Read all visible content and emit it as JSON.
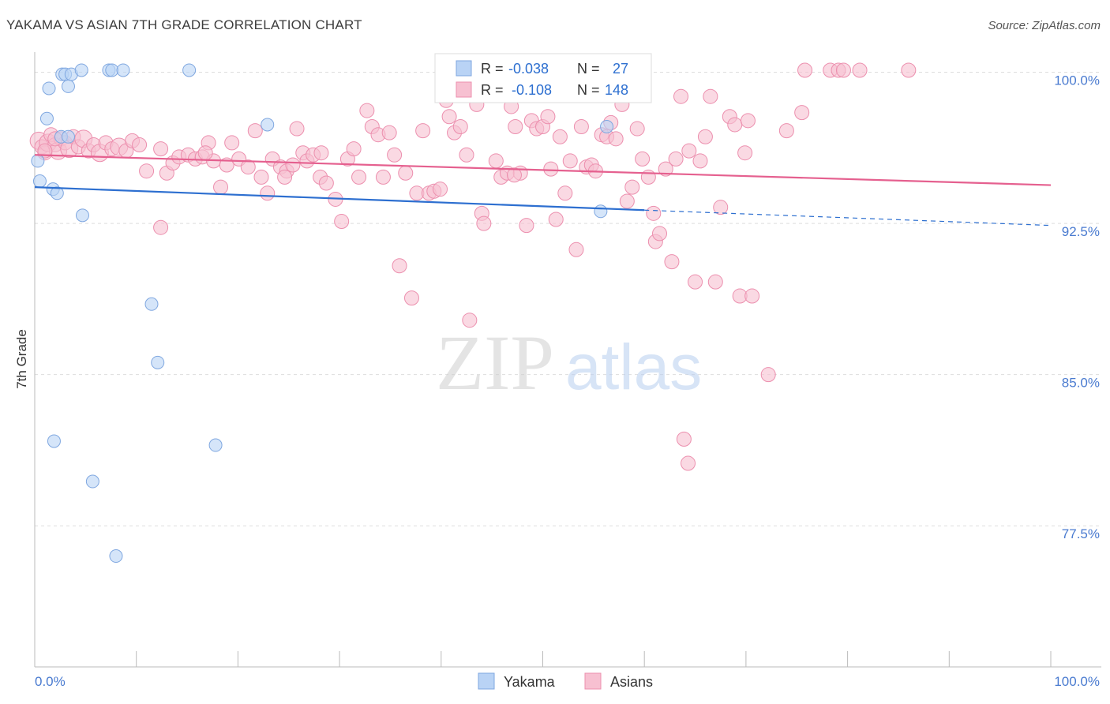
{
  "header": {
    "title": "YAKAMA VS ASIAN 7TH GRADE CORRELATION CHART",
    "source": "Source: ZipAtlas.com"
  },
  "watermark": {
    "zip": "ZIP",
    "atlas": "atlas"
  },
  "colors": {
    "yakama_fill": "#b9d3f5",
    "yakama_stroke": "#7fa7e0",
    "yakama_line": "#2d6fd0",
    "asians_fill": "#f7c0d1",
    "asians_stroke": "#ec8fae",
    "asians_line": "#e5608f",
    "tick_text": "#4a7bd0",
    "grid": "#dddddd"
  },
  "stats": {
    "yakama": {
      "r_label": "R =",
      "r_value": "-0.038",
      "n_label": "N =",
      "n_value": "27"
    },
    "asians": {
      "r_label": "R =",
      "r_value": "-0.108",
      "n_label": "N =",
      "n_value": "148"
    }
  },
  "chart_data": {
    "type": "scatter",
    "title": "YAKAMA VS ASIAN 7TH GRADE CORRELATION CHART",
    "xlabel": "",
    "ylabel": "7th Grade",
    "xlim": [
      0,
      100
    ],
    "ylim": [
      70.5,
      101
    ],
    "x_tick_labels": [
      "0.0%",
      "100.0%"
    ],
    "y_ticks": [
      77.5,
      85.0,
      92.5,
      100.0
    ],
    "y_tick_labels": [
      "77.5%",
      "85.0%",
      "92.5%",
      "100.0%"
    ],
    "grid": true,
    "legend_placement": "bottom-center",
    "series": [
      {
        "name": "Yakama",
        "trend": {
          "x0": 0,
          "y0": 94.3,
          "x1": 100,
          "y1": 92.4,
          "solid_until_x": 60
        },
        "points": [
          [
            0.3,
            95.6
          ],
          [
            0.5,
            94.6
          ],
          [
            1.2,
            97.7
          ],
          [
            1.4,
            99.2
          ],
          [
            1.8,
            94.2
          ],
          [
            2.2,
            94.0
          ],
          [
            2.6,
            96.8
          ],
          [
            2.7,
            99.9
          ],
          [
            3.0,
            99.9
          ],
          [
            3.3,
            99.3
          ],
          [
            3.6,
            99.9
          ],
          [
            4.6,
            100.1
          ],
          [
            7.3,
            100.1
          ],
          [
            7.6,
            100.1
          ],
          [
            8.7,
            100.1
          ],
          [
            15.2,
            100.1
          ],
          [
            22.9,
            97.4
          ],
          [
            3.3,
            96.8
          ],
          [
            4.7,
            92.9
          ],
          [
            11.5,
            88.5
          ],
          [
            12.1,
            85.6
          ],
          [
            1.9,
            81.7
          ],
          [
            17.8,
            81.5
          ],
          [
            5.7,
            79.7
          ],
          [
            8.0,
            76.0
          ],
          [
            56.3,
            97.3
          ],
          [
            55.7,
            93.1
          ]
        ]
      },
      {
        "name": "Asians",
        "trend": {
          "x0": 0,
          "y0": 95.9,
          "x1": 100,
          "y1": 94.4
        },
        "points": [
          [
            0.4,
            96.6
          ],
          [
            0.7,
            96.3
          ],
          [
            1.0,
            96.0
          ],
          [
            1.3,
            96.5
          ],
          [
            1.6,
            96.9
          ],
          [
            2.0,
            96.4
          ],
          [
            2.3,
            96.1
          ],
          [
            2.6,
            96.7
          ],
          [
            3.0,
            96.5
          ],
          [
            3.4,
            96.2
          ],
          [
            3.8,
            96.8
          ],
          [
            4.3,
            96.3
          ],
          [
            4.8,
            96.7
          ],
          [
            5.3,
            96.1
          ],
          [
            5.8,
            96.4
          ],
          [
            6.4,
            96.0
          ],
          [
            7.0,
            96.5
          ],
          [
            7.6,
            96.2
          ],
          [
            8.3,
            96.3
          ],
          [
            9.0,
            96.1
          ],
          [
            9.6,
            96.6
          ],
          [
            10.3,
            96.4
          ],
          [
            11.0,
            95.1
          ],
          [
            12.4,
            96.2
          ],
          [
            13.0,
            95.0
          ],
          [
            13.6,
            95.5
          ],
          [
            14.2,
            95.8
          ],
          [
            15.1,
            95.9
          ],
          [
            15.8,
            95.7
          ],
          [
            16.5,
            95.8
          ],
          [
            17.1,
            96.5
          ],
          [
            17.6,
            95.6
          ],
          [
            18.3,
            94.3
          ],
          [
            18.9,
            95.4
          ],
          [
            19.4,
            96.5
          ],
          [
            20.1,
            95.7
          ],
          [
            21.0,
            95.3
          ],
          [
            21.7,
            97.1
          ],
          [
            22.3,
            94.8
          ],
          [
            22.9,
            94.0
          ],
          [
            23.4,
            95.7
          ],
          [
            24.2,
            95.3
          ],
          [
            24.8,
            95.1
          ],
          [
            25.4,
            95.4
          ],
          [
            25.8,
            97.2
          ],
          [
            26.4,
            96.0
          ],
          [
            26.8,
            95.6
          ],
          [
            27.4,
            95.9
          ],
          [
            28.1,
            94.8
          ],
          [
            28.7,
            94.5
          ],
          [
            28.2,
            96.0
          ],
          [
            29.6,
            93.7
          ],
          [
            30.2,
            92.6
          ],
          [
            30.8,
            95.7
          ],
          [
            31.4,
            96.2
          ],
          [
            31.9,
            94.8
          ],
          [
            32.7,
            98.1
          ],
          [
            33.2,
            97.3
          ],
          [
            33.8,
            96.9
          ],
          [
            34.3,
            94.8
          ],
          [
            34.9,
            97.0
          ],
          [
            35.4,
            95.9
          ],
          [
            35.9,
            90.4
          ],
          [
            36.5,
            95.0
          ],
          [
            37.1,
            88.8
          ],
          [
            37.6,
            94.0
          ],
          [
            38.2,
            97.1
          ],
          [
            38.8,
            94.0
          ],
          [
            39.3,
            94.1
          ],
          [
            39.9,
            94.2
          ],
          [
            40.5,
            98.6
          ],
          [
            40.8,
            97.8
          ],
          [
            41.3,
            97.0
          ],
          [
            41.9,
            97.3
          ],
          [
            42.5,
            95.9
          ],
          [
            42.8,
            87.7
          ],
          [
            43.5,
            98.4
          ],
          [
            44.0,
            93.0
          ],
          [
            44.2,
            92.5
          ],
          [
            44.9,
            99.6
          ],
          [
            45.4,
            95.6
          ],
          [
            45.9,
            94.8
          ],
          [
            46.5,
            95.0
          ],
          [
            46.9,
            98.3
          ],
          [
            47.3,
            97.3
          ],
          [
            47.8,
            95.0
          ],
          [
            48.4,
            92.4
          ],
          [
            48.9,
            97.6
          ],
          [
            49.4,
            97.2
          ],
          [
            50.0,
            97.3
          ],
          [
            50.5,
            97.8
          ],
          [
            50.8,
            95.2
          ],
          [
            51.3,
            92.7
          ],
          [
            51.7,
            96.8
          ],
          [
            52.2,
            94.0
          ],
          [
            52.7,
            95.6
          ],
          [
            53.3,
            91.2
          ],
          [
            53.8,
            97.3
          ],
          [
            54.3,
            95.3
          ],
          [
            54.8,
            95.4
          ],
          [
            55.2,
            95.1
          ],
          [
            55.8,
            96.9
          ],
          [
            56.3,
            96.8
          ],
          [
            56.7,
            97.5
          ],
          [
            57.2,
            96.7
          ],
          [
            57.8,
            98.4
          ],
          [
            58.3,
            93.6
          ],
          [
            58.8,
            94.3
          ],
          [
            59.3,
            97.2
          ],
          [
            59.8,
            95.7
          ],
          [
            60.4,
            94.8
          ],
          [
            60.9,
            93.0
          ],
          [
            61.1,
            91.6
          ],
          [
            61.5,
            92.0
          ],
          [
            62.1,
            95.2
          ],
          [
            62.7,
            90.6
          ],
          [
            63.1,
            95.7
          ],
          [
            63.6,
            98.8
          ],
          [
            64.4,
            96.1
          ],
          [
            65.0,
            89.6
          ],
          [
            65.5,
            95.6
          ],
          [
            66.0,
            96.8
          ],
          [
            66.5,
            98.8
          ],
          [
            67.0,
            89.6
          ],
          [
            67.5,
            93.3
          ],
          [
            68.4,
            97.8
          ],
          [
            68.9,
            97.4
          ],
          [
            69.4,
            88.9
          ],
          [
            69.9,
            96.0
          ],
          [
            70.2,
            97.6
          ],
          [
            70.6,
            88.9
          ],
          [
            72.2,
            85.0
          ],
          [
            74.0,
            97.1
          ],
          [
            75.5,
            98.0
          ],
          [
            75.8,
            100.1
          ],
          [
            78.3,
            100.1
          ],
          [
            79.1,
            100.1
          ],
          [
            79.6,
            100.1
          ],
          [
            81.2,
            100.1
          ],
          [
            86.0,
            100.1
          ],
          [
            63.9,
            81.8
          ],
          [
            64.3,
            80.6
          ],
          [
            1.0,
            96.1
          ],
          [
            2.0,
            96.7
          ],
          [
            12.4,
            92.3
          ],
          [
            16.8,
            96.0
          ],
          [
            24.6,
            94.8
          ],
          [
            47.2,
            94.9
          ]
        ]
      }
    ]
  },
  "legend": {
    "items": [
      {
        "label": "Yakama"
      },
      {
        "label": "Asians"
      }
    ]
  }
}
